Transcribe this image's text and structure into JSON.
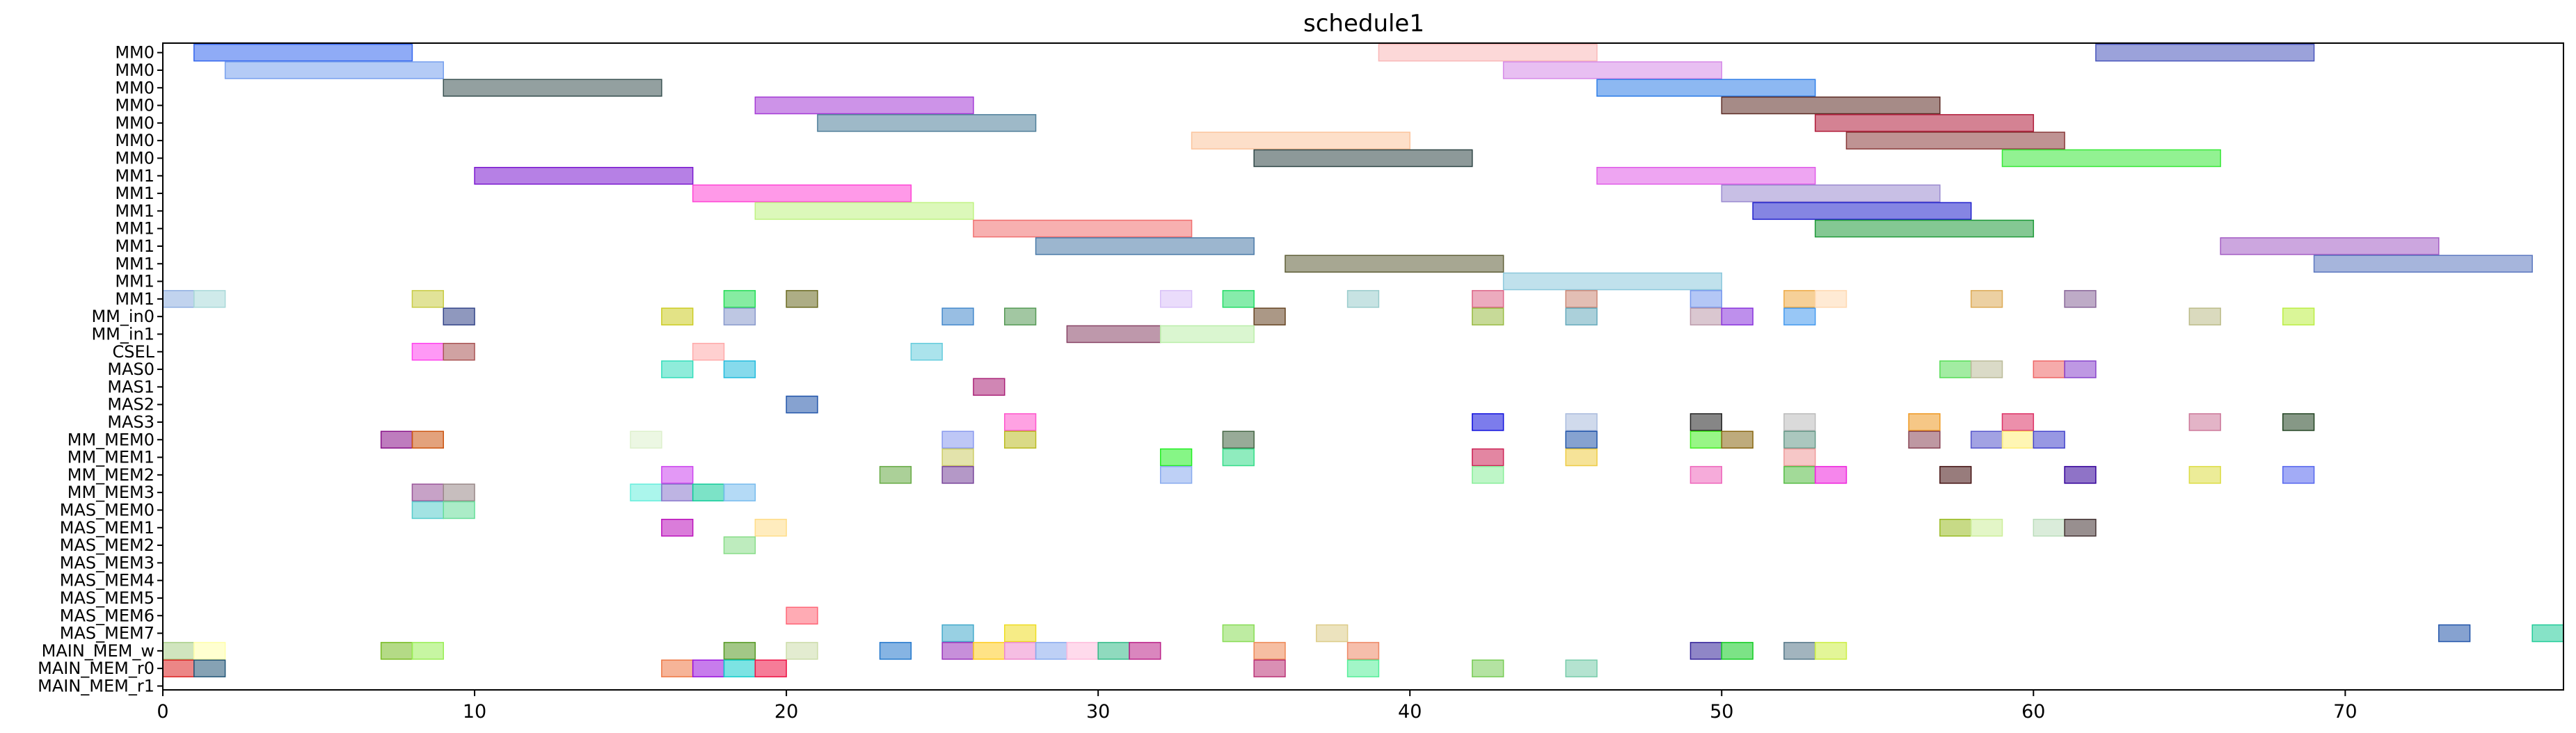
{
  "chart_data": {
    "type": "gantt",
    "title": "schedule1",
    "xlim": [
      0,
      77
    ],
    "xticks": [
      0,
      10,
      20,
      30,
      40,
      50,
      60,
      70
    ],
    "grid": false,
    "rows": [
      "MM0",
      "MM0",
      "MM0",
      "MM0",
      "MM0",
      "MM0",
      "MM0",
      "MM1",
      "MM1",
      "MM1",
      "MM1",
      "MM1",
      "MM1",
      "MM1",
      "MM1",
      "MM_in0",
      "MM_in1",
      "CSEL",
      "MAS0",
      "MAS1",
      "MAS2",
      "MAS3",
      "MM_MEM0",
      "MM_MEM1",
      "MM_MEM2",
      "MM_MEM3",
      "MAS_MEM0",
      "MAS_MEM1",
      "MAS_MEM2",
      "MAS_MEM3",
      "MAS_MEM4",
      "MAS_MEM5",
      "MAS_MEM6",
      "MAS_MEM7",
      "MAIN_MEM_w",
      "MAIN_MEM_r0",
      "MAIN_MEM_r1"
    ],
    "tasks": [
      {
        "row": 0,
        "start": 1,
        "end": 8,
        "color": "#3366ee"
      },
      {
        "row": 0,
        "start": 39,
        "end": 46,
        "color": "#f9b8b8"
      },
      {
        "row": 0,
        "start": 62,
        "end": 69,
        "color": "#4855bb"
      },
      {
        "row": 1,
        "start": 2,
        "end": 9,
        "color": "#77a0ee"
      },
      {
        "row": 1,
        "start": 43,
        "end": 50,
        "color": "#d68ae8"
      },
      {
        "row": 2,
        "start": 9,
        "end": 16,
        "color": "#3a5252"
      },
      {
        "row": 2,
        "start": 46,
        "end": 53,
        "color": "#2f7ee8"
      },
      {
        "row": 3,
        "start": 19,
        "end": 26,
        "color": "#a43ad6"
      },
      {
        "row": 3,
        "start": 50,
        "end": 57,
        "color": "#5c2b24"
      },
      {
        "row": 4,
        "start": 21,
        "end": 28,
        "color": "#4f7f9a"
      },
      {
        "row": 4,
        "start": 53,
        "end": 60,
        "color": "#b01c3a"
      },
      {
        "row": 5,
        "start": 33,
        "end": 40,
        "color": "#fcc49c"
      },
      {
        "row": 5,
        "start": 54,
        "end": 61,
        "color": "#8a3b3b"
      },
      {
        "row": 6,
        "start": 35,
        "end": 42,
        "color": "#2f4646"
      },
      {
        "row": 6,
        "start": 59,
        "end": 66,
        "color": "#38e838"
      },
      {
        "row": 7,
        "start": 10,
        "end": 17,
        "color": "#7a17cf"
      },
      {
        "row": 7,
        "start": 46,
        "end": 53,
        "color": "#e05be8"
      },
      {
        "row": 8,
        "start": 17,
        "end": 24,
        "color": "#ff45d5"
      },
      {
        "row": 8,
        "start": 50,
        "end": 57,
        "color": "#9a8ad0"
      },
      {
        "row": 9,
        "start": 19,
        "end": 26,
        "color": "#c0f282"
      },
      {
        "row": 9,
        "start": 51,
        "end": 58,
        "color": "#2020cc"
      },
      {
        "row": 10,
        "start": 26,
        "end": 33,
        "color": "#f17070"
      },
      {
        "row": 10,
        "start": 53,
        "end": 60,
        "color": "#1f9a3a"
      },
      {
        "row": 11,
        "start": 28,
        "end": 35,
        "color": "#4a7aa8"
      },
      {
        "row": 11,
        "start": 66,
        "end": 73,
        "color": "#a35cc4"
      },
      {
        "row": 12,
        "start": 36,
        "end": 43,
        "color": "#5f5f38"
      },
      {
        "row": 12,
        "start": 69,
        "end": 76,
        "color": "#5c78c0"
      },
      {
        "row": 13,
        "start": 43,
        "end": 50,
        "color": "#8cc8dc"
      },
      {
        "row": 14,
        "start": 0,
        "end": 1,
        "color": "#8eaee0"
      },
      {
        "row": 14,
        "start": 1,
        "end": 2,
        "color": "#a8d8d8"
      },
      {
        "row": 14,
        "start": 8,
        "end": 9,
        "color": "#c8cc44"
      },
      {
        "row": 14,
        "start": 18,
        "end": 19,
        "color": "#22dd55"
      },
      {
        "row": 14,
        "start": 20,
        "end": 21,
        "color": "#6a6a20"
      },
      {
        "row": 14,
        "start": 32,
        "end": 33,
        "color": "#d8c0f8"
      },
      {
        "row": 14,
        "start": 34,
        "end": 35,
        "color": "#22dd66"
      },
      {
        "row": 14,
        "start": 38,
        "end": 39,
        "color": "#99cccc"
      },
      {
        "row": 14,
        "start": 42,
        "end": 43,
        "color": "#dd6688"
      },
      {
        "row": 14,
        "start": 45,
        "end": 46,
        "color": "#cc8877"
      },
      {
        "row": 14,
        "start": 49,
        "end": 50,
        "color": "#7799ee"
      },
      {
        "row": 14,
        "start": 52,
        "end": 53,
        "color": "#eeaa44"
      },
      {
        "row": 14,
        "start": 53,
        "end": 54,
        "color": "#ffd8b0"
      },
      {
        "row": 14,
        "start": 58,
        "end": 59,
        "color": "#ddaa55"
      },
      {
        "row": 14,
        "start": 61,
        "end": 62,
        "color": "#886699"
      },
      {
        "row": 15,
        "start": 9,
        "end": 10,
        "color": "#334488"
      },
      {
        "row": 15,
        "start": 16,
        "end": 17,
        "color": "#cccc22"
      },
      {
        "row": 15,
        "start": 18,
        "end": 19,
        "color": "#8899cc"
      },
      {
        "row": 15,
        "start": 25,
        "end": 26,
        "color": "#4488cc"
      },
      {
        "row": 15,
        "start": 27,
        "end": 28,
        "color": "#559955"
      },
      {
        "row": 15,
        "start": 35,
        "end": 36,
        "color": "#664422"
      },
      {
        "row": 15,
        "start": 42,
        "end": 43,
        "color": "#99bb44"
      },
      {
        "row": 15,
        "start": 45,
        "end": 46,
        "color": "#66aabb"
      },
      {
        "row": 15,
        "start": 49,
        "end": 50,
        "color": "#bb99aa"
      },
      {
        "row": 15,
        "start": 50,
        "end": 51,
        "color": "#8833dd"
      },
      {
        "row": 15,
        "start": 52,
        "end": 53,
        "color": "#4499ee"
      },
      {
        "row": 15,
        "start": 65,
        "end": 66,
        "color": "#bbbb88"
      },
      {
        "row": 15,
        "start": 68,
        "end": 69,
        "color": "#bbee44"
      },
      {
        "row": 16,
        "start": 29,
        "end": 32,
        "color": "#884466"
      },
      {
        "row": 16,
        "start": 32,
        "end": 35,
        "color": "#bbeeaa"
      },
      {
        "row": 17,
        "start": 8,
        "end": 9,
        "color": "#ff44ee"
      },
      {
        "row": 17,
        "start": 9,
        "end": 10,
        "color": "#aa5555"
      },
      {
        "row": 17,
        "start": 17,
        "end": 18,
        "color": "#ffaaaa"
      },
      {
        "row": 17,
        "start": 24,
        "end": 25,
        "color": "#66ccdd"
      },
      {
        "row": 18,
        "start": 16,
        "end": 17,
        "color": "#33ddbb"
      },
      {
        "row": 18,
        "start": 18,
        "end": 19,
        "color": "#22bbdd"
      },
      {
        "row": 18,
        "start": 57,
        "end": 58,
        "color": "#55dd55"
      },
      {
        "row": 18,
        "start": 58,
        "end": 59,
        "color": "#bbbb99"
      },
      {
        "row": 18,
        "start": 60,
        "end": 61,
        "color": "#ee6666"
      },
      {
        "row": 18,
        "start": 61,
        "end": 62,
        "color": "#8844cc"
      },
      {
        "row": 19,
        "start": 26,
        "end": 27,
        "color": "#aa2277"
      },
      {
        "row": 20,
        "start": 20,
        "end": 21,
        "color": "#2255aa"
      },
      {
        "row": 21,
        "start": 27,
        "end": 28,
        "color": "#ff55cc"
      },
      {
        "row": 21,
        "start": 42,
        "end": 43,
        "color": "#1111dd"
      },
      {
        "row": 21,
        "start": 45,
        "end": 46,
        "color": "#aabbdd"
      },
      {
        "row": 21,
        "start": 49,
        "end": 50,
        "color": "#222222"
      },
      {
        "row": 21,
        "start": 52,
        "end": 53,
        "color": "#bbbbbb"
      },
      {
        "row": 21,
        "start": 56,
        "end": 57,
        "color": "#ee9922"
      },
      {
        "row": 21,
        "start": 59,
        "end": 60,
        "color": "#dd3366"
      },
      {
        "row": 21,
        "start": 65,
        "end": 66,
        "color": "#cc7799"
      },
      {
        "row": 21,
        "start": 68,
        "end": 69,
        "color": "#224422"
      },
      {
        "row": 22,
        "start": 7,
        "end": 8,
        "color": "#881188"
      },
      {
        "row": 22,
        "start": 8,
        "end": 9,
        "color": "#cc5511"
      },
      {
        "row": 22,
        "start": 15,
        "end": 16,
        "color": "#ddf0cc"
      },
      {
        "row": 22,
        "start": 25,
        "end": 26,
        "color": "#8899ee"
      },
      {
        "row": 22,
        "start": 27,
        "end": 28,
        "color": "#bbbb22"
      },
      {
        "row": 22,
        "start": 34,
        "end": 35,
        "color": "#446644"
      },
      {
        "row": 22,
        "start": 45,
        "end": 46,
        "color": "#2255aa"
      },
      {
        "row": 22,
        "start": 49,
        "end": 50,
        "color": "#44ee22"
      },
      {
        "row": 22,
        "start": 50,
        "end": 51,
        "color": "#886611"
      },
      {
        "row": 22,
        "start": 52,
        "end": 53,
        "color": "#669988"
      },
      {
        "row": 22,
        "start": 56,
        "end": 57,
        "color": "#884455"
      },
      {
        "row": 22,
        "start": 58,
        "end": 59,
        "color": "#5555cc"
      },
      {
        "row": 22,
        "start": 59,
        "end": 60,
        "color": "#ffee77"
      },
      {
        "row": 22,
        "start": 60,
        "end": 61,
        "color": "#4444cc"
      },
      {
        "row": 23,
        "start": 25,
        "end": 26,
        "color": "#cccc66"
      },
      {
        "row": 23,
        "start": 32,
        "end": 33,
        "color": "#22ee22"
      },
      {
        "row": 23,
        "start": 34,
        "end": 35,
        "color": "#33dd88"
      },
      {
        "row": 23,
        "start": 42,
        "end": 43,
        "color": "#cc2255"
      },
      {
        "row": 23,
        "start": 45,
        "end": 46,
        "color": "#eecc44"
      },
      {
        "row": 23,
        "start": 52,
        "end": 53,
        "color": "#ee9999"
      },
      {
        "row": 24,
        "start": 16,
        "end": 17,
        "color": "#cc44ee"
      },
      {
        "row": 24,
        "start": 23,
        "end": 24,
        "color": "#66aa44"
      },
      {
        "row": 24,
        "start": 25,
        "end": 26,
        "color": "#774499"
      },
      {
        "row": 24,
        "start": 32,
        "end": 33,
        "color": "#88aaee"
      },
      {
        "row": 24,
        "start": 42,
        "end": 43,
        "color": "#88ee99"
      },
      {
        "row": 24,
        "start": 49,
        "end": 50,
        "color": "#ee66bb"
      },
      {
        "row": 24,
        "start": 52,
        "end": 53,
        "color": "#55bb44"
      },
      {
        "row": 24,
        "start": 53,
        "end": 54,
        "color": "#ee22dd"
      },
      {
        "row": 24,
        "start": 57,
        "end": 58,
        "color": "#441111"
      },
      {
        "row": 24,
        "start": 61,
        "end": 62,
        "color": "#330099"
      },
      {
        "row": 24,
        "start": 65,
        "end": 66,
        "color": "#dddd44"
      },
      {
        "row": 24,
        "start": 68,
        "end": 69,
        "color": "#5566ee"
      },
      {
        "row": 25,
        "start": 8,
        "end": 9,
        "color": "#995599"
      },
      {
        "row": 25,
        "start": 9,
        "end": 10,
        "color": "#998888"
      },
      {
        "row": 25,
        "start": 15,
        "end": 16,
        "color": "#66eedd"
      },
      {
        "row": 25,
        "start": 16,
        "end": 17,
        "color": "#8877cc"
      },
      {
        "row": 25,
        "start": 17,
        "end": 18,
        "color": "#11cc99"
      },
      {
        "row": 25,
        "start": 18,
        "end": 19,
        "color": "#77bbee"
      },
      {
        "row": 26,
        "start": 8,
        "end": 9,
        "color": "#55cccc"
      },
      {
        "row": 26,
        "start": 9,
        "end": 10,
        "color": "#66dd99"
      },
      {
        "row": 27,
        "start": 16,
        "end": 17,
        "color": "#bb11bb"
      },
      {
        "row": 27,
        "start": 19,
        "end": 20,
        "color": "#ffdd88"
      },
      {
        "row": 27,
        "start": 57,
        "end": 58,
        "color": "#99bb22"
      },
      {
        "row": 27,
        "start": 58,
        "end": 59,
        "color": "#ccee99"
      },
      {
        "row": 27,
        "start": 60,
        "end": 61,
        "color": "#bbddbb"
      },
      {
        "row": 27,
        "start": 61,
        "end": 62,
        "color": "#443333"
      },
      {
        "row": 28,
        "start": 18,
        "end": 19,
        "color": "#88dd88"
      },
      {
        "row": 32,
        "start": 20,
        "end": 21,
        "color": "#ff6677"
      },
      {
        "row": 33,
        "start": 25,
        "end": 26,
        "color": "#44aacc"
      },
      {
        "row": 33,
        "start": 27,
        "end": 28,
        "color": "#eedd22"
      },
      {
        "row": 33,
        "start": 34,
        "end": 35,
        "color": "#88dd55"
      },
      {
        "row": 33,
        "start": 37,
        "end": 38,
        "color": "#ddcc88"
      },
      {
        "row": 33,
        "start": 73,
        "end": 74,
        "color": "#2255aa"
      },
      {
        "row": 33,
        "start": 76,
        "end": 77,
        "color": "#22cc99"
      },
      {
        "row": 34,
        "start": 0,
        "end": 1,
        "color": "#aad088"
      },
      {
        "row": 34,
        "start": 1,
        "end": 2,
        "color": "#ffffaa"
      },
      {
        "row": 34,
        "start": 7,
        "end": 8,
        "color": "#77bb22"
      },
      {
        "row": 34,
        "start": 8,
        "end": 9,
        "color": "#99ee55"
      },
      {
        "row": 34,
        "start": 18,
        "end": 19,
        "color": "#559922"
      },
      {
        "row": 34,
        "start": 20,
        "end": 21,
        "color": "#ccddaa"
      },
      {
        "row": 34,
        "start": 23,
        "end": 24,
        "color": "#2277cc"
      },
      {
        "row": 34,
        "start": 25,
        "end": 26,
        "color": "#9933bb"
      },
      {
        "row": 34,
        "start": 26,
        "end": 27,
        "color": "#ffcc22"
      },
      {
        "row": 34,
        "start": 27,
        "end": 28,
        "color": "#ee88cc"
      },
      {
        "row": 34,
        "start": 28,
        "end": 29,
        "color": "#88aaee"
      },
      {
        "row": 34,
        "start": 29,
        "end": 30,
        "color": "#ffbbdd"
      },
      {
        "row": 34,
        "start": 30,
        "end": 31,
        "color": "#33bb88"
      },
      {
        "row": 34,
        "start": 31,
        "end": 32,
        "color": "#bb2288"
      },
      {
        "row": 34,
        "start": 35,
        "end": 36,
        "color": "#ee8855"
      },
      {
        "row": 34,
        "start": 38,
        "end": 39,
        "color": "#ee8866"
      },
      {
        "row": 34,
        "start": 49,
        "end": 50,
        "color": "#332299"
      },
      {
        "row": 34,
        "start": 50,
        "end": 51,
        "color": "#11cc22"
      },
      {
        "row": 34,
        "start": 52,
        "end": 53,
        "color": "#557788"
      },
      {
        "row": 34,
        "start": 53,
        "end": 54,
        "color": "#ccee44"
      },
      {
        "row": 35,
        "start": 0,
        "end": 1,
        "color": "#dd2222"
      },
      {
        "row": 35,
        "start": 1,
        "end": 2,
        "color": "#225577"
      },
      {
        "row": 35,
        "start": 16,
        "end": 17,
        "color": "#ee7744"
      },
      {
        "row": 35,
        "start": 17,
        "end": 18,
        "color": "#9911dd"
      },
      {
        "row": 35,
        "start": 18,
        "end": 19,
        "color": "#11cccc"
      },
      {
        "row": 35,
        "start": 19,
        "end": 20,
        "color": "#ee1144"
      },
      {
        "row": 35,
        "start": 35,
        "end": 36,
        "color": "#bb3377"
      },
      {
        "row": 35,
        "start": 38,
        "end": 39,
        "color": "#55ee99"
      },
      {
        "row": 35,
        "start": 42,
        "end": 43,
        "color": "#77cc55"
      },
      {
        "row": 35,
        "start": 45,
        "end": 46,
        "color": "#77ccaa"
      }
    ]
  }
}
